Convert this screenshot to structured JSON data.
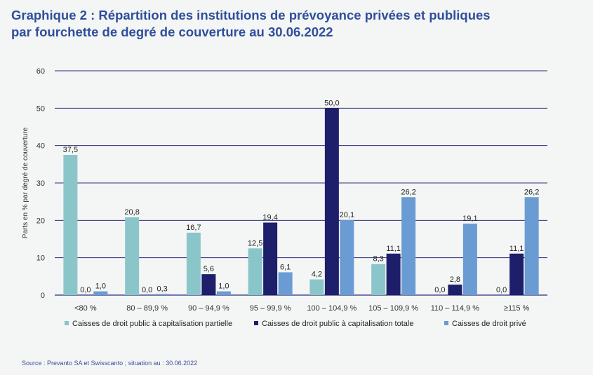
{
  "header": {
    "title_line1": "Graphique 2 : Répartition des institutions de prévoyance privées et publiques",
    "title_line2": "par fourchette de degré de couverture au 30.06.2022"
  },
  "source": "Source : Prevanto SA et Swisscanto ; situation au : 30.06.2022",
  "colors": {
    "series1": "#8ac6c9",
    "series2": "#1d1f6b",
    "series3": "#6a9bd3",
    "grid": "#2a2d7a"
  },
  "chart_data": {
    "type": "bar",
    "ylabel": "Parts en % par degré de couverture",
    "ylim": [
      0,
      60
    ],
    "yticks": [
      "0",
      "10",
      "20",
      "30",
      "40",
      "50",
      "60"
    ],
    "categories": [
      "<80 %",
      "80 – 89,9 %",
      "90 – 94,9 %",
      "95 – 99,9 %",
      "100 – 104,9 %",
      "105 – 109,9 %",
      "110 – 114,9 %",
      "≥115 %"
    ],
    "series": [
      {
        "name": "Caisses de droit public à capitalisation partielle",
        "values": [
          37.5,
          20.8,
          16.7,
          12.5,
          4.2,
          8.3,
          0.0,
          0.0
        ],
        "labels": [
          "37,5",
          "20,8",
          "16,7",
          "12,5",
          "4,2",
          "8,3",
          "",
          "0,0"
        ]
      },
      {
        "name": "Caisses de droit public à capitalisation totale",
        "values": [
          0.0,
          0.0,
          5.6,
          19.4,
          50.0,
          11.1,
          2.8,
          11.1
        ],
        "labels": [
          "0,0",
          "0,0",
          "5,6",
          "19,4",
          "50,0",
          "11,1",
          "2,8",
          "11,1"
        ]
      },
      {
        "name": "Caisses de droit privé",
        "values": [
          1.0,
          0.3,
          1.0,
          6.1,
          20.1,
          26.2,
          19.1,
          26.2
        ],
        "labels": [
          "1,0",
          "0,3",
          "1,0",
          "6,1",
          "20,1",
          "26,2",
          "19,1",
          "26,2"
        ]
      }
    ],
    "extra_labels": [
      {
        "category_index": 6,
        "text": "0,0"
      }
    ]
  }
}
